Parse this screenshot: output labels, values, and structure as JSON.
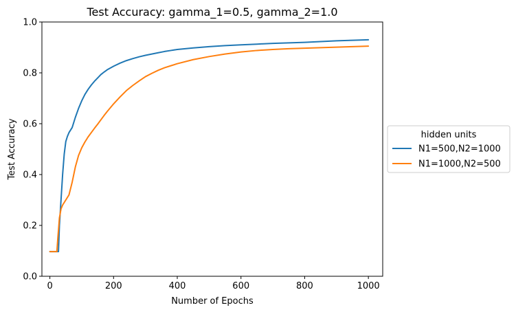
{
  "chart_data": {
    "type": "line",
    "title": "Test Accuracy:  gamma_1=0.5, gamma_2=1.0",
    "xlabel": "Number of Epochs",
    "ylabel": "Test Accuracy",
    "xlim": [
      -25,
      1045
    ],
    "ylim": [
      0.0,
      1.0
    ],
    "xticks": [
      0,
      200,
      400,
      600,
      800,
      1000
    ],
    "yticks": [
      0.0,
      0.2,
      0.4,
      0.6,
      0.8,
      1.0
    ],
    "xtick_labels": [
      "0",
      "200",
      "400",
      "600",
      "800",
      "1000"
    ],
    "ytick_labels": [
      "0.0",
      "0.2",
      "0.4",
      "0.6",
      "0.8",
      "1.0"
    ],
    "grid": false,
    "legend": {
      "title": "hidden units",
      "placement": "outside-right"
    },
    "series": [
      {
        "name": "N1=500,N2=1000",
        "color": "#1f77b4",
        "x": [
          0,
          27,
          30,
          35,
          40,
          45,
          50,
          55,
          60,
          70,
          80,
          90,
          100,
          110,
          120,
          130,
          140,
          150,
          160,
          170,
          180,
          200,
          220,
          240,
          260,
          280,
          300,
          320,
          340,
          360,
          380,
          400,
          450,
          500,
          550,
          600,
          650,
          700,
          750,
          800,
          850,
          900,
          950,
          1000
        ],
        "y": [
          0.097,
          0.097,
          0.2,
          0.3,
          0.4,
          0.48,
          0.53,
          0.55,
          0.565,
          0.585,
          0.625,
          0.66,
          0.69,
          0.715,
          0.735,
          0.752,
          0.767,
          0.78,
          0.793,
          0.803,
          0.812,
          0.826,
          0.838,
          0.848,
          0.856,
          0.863,
          0.869,
          0.874,
          0.879,
          0.884,
          0.888,
          0.892,
          0.898,
          0.903,
          0.907,
          0.91,
          0.913,
          0.916,
          0.918,
          0.92,
          0.923,
          0.926,
          0.928,
          0.93
        ]
      },
      {
        "name": "N1=1000,N2=500",
        "color": "#ff7f0e",
        "x": [
          0,
          22,
          25,
          30,
          35,
          40,
          50,
          60,
          70,
          80,
          90,
          100,
          110,
          120,
          130,
          140,
          150,
          160,
          170,
          180,
          200,
          220,
          240,
          260,
          280,
          300,
          320,
          340,
          360,
          380,
          400,
          450,
          500,
          550,
          600,
          650,
          700,
          750,
          800,
          850,
          900,
          950,
          1000
        ],
        "y": [
          0.097,
          0.097,
          0.15,
          0.23,
          0.265,
          0.28,
          0.3,
          0.32,
          0.37,
          0.43,
          0.475,
          0.505,
          0.528,
          0.548,
          0.565,
          0.582,
          0.598,
          0.615,
          0.632,
          0.648,
          0.678,
          0.705,
          0.73,
          0.75,
          0.768,
          0.785,
          0.798,
          0.81,
          0.82,
          0.828,
          0.836,
          0.852,
          0.864,
          0.874,
          0.882,
          0.888,
          0.892,
          0.895,
          0.897,
          0.899,
          0.901,
          0.903,
          0.905
        ]
      }
    ]
  }
}
